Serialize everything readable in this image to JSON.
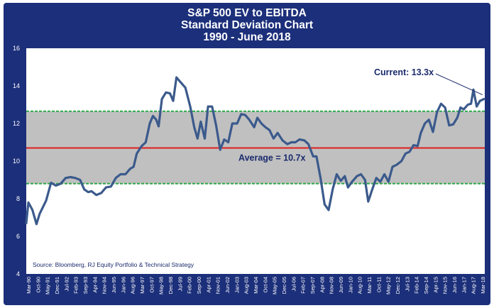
{
  "chart_data": {
    "type": "line",
    "title": [
      "S&P 500 EV to EBITDA",
      "Standard Deviation Chart",
      "1990 - June 2018"
    ],
    "ylim": [
      4,
      16
    ],
    "yticks": [
      "4",
      "6",
      "8",
      "10",
      "12",
      "14",
      "16"
    ],
    "xticks": [
      "Mar-90",
      "Oct-90",
      "May-91",
      "Dec-91",
      "Jul-92",
      "Feb-93",
      "Sep-93",
      "Apr-94",
      "Nov-94",
      "Jun-95",
      "Jan-96",
      "Aug-96",
      "Mar-97",
      "Oct-97",
      "May-98",
      "Dec-98",
      "Jul-99",
      "Feb-00",
      "Sep-00",
      "Apr-01",
      "Nov-01",
      "Jun-02",
      "Jan-03",
      "Aug-03",
      "Mar-04",
      "Oct-04",
      "May-05",
      "Dec-05",
      "Jul-06",
      "Feb-07",
      "Sep-07",
      "Apr-08",
      "Nov-08",
      "Jun-09",
      "Jan-10",
      "Aug-10",
      "Mar-11",
      "Oct-11",
      "May-12",
      "Dec-12",
      "Jul-13",
      "Feb-14",
      "Sep-14",
      "Apr-15",
      "Nov-15",
      "Jun-16",
      "Jan-17",
      "Aug-17",
      "Mar-18"
    ],
    "x_range": [
      1990.17,
      2018.5
    ],
    "average": 10.7,
    "upper_band": 12.65,
    "lower_band": 8.8,
    "series": [
      {
        "points": [
          [
            1990.17,
            6.7
          ],
          [
            1990.3,
            7.8
          ],
          [
            1990.55,
            7.4
          ],
          [
            1990.8,
            6.65
          ],
          [
            1991.0,
            7.2
          ],
          [
            1991.4,
            7.9
          ],
          [
            1991.7,
            8.85
          ],
          [
            1992.0,
            8.7
          ],
          [
            1992.3,
            8.8
          ],
          [
            1992.6,
            9.1
          ],
          [
            1992.9,
            9.15
          ],
          [
            1993.2,
            9.1
          ],
          [
            1993.5,
            9.0
          ],
          [
            1993.75,
            8.5
          ],
          [
            1994.0,
            8.35
          ],
          [
            1994.2,
            8.4
          ],
          [
            1994.5,
            8.2
          ],
          [
            1994.8,
            8.3
          ],
          [
            1995.1,
            8.6
          ],
          [
            1995.4,
            8.65
          ],
          [
            1995.7,
            9.1
          ],
          [
            1996.0,
            9.3
          ],
          [
            1996.3,
            9.3
          ],
          [
            1996.6,
            9.6
          ],
          [
            1996.8,
            9.7
          ],
          [
            1997.0,
            10.4
          ],
          [
            1997.3,
            10.8
          ],
          [
            1997.55,
            11.0
          ],
          [
            1997.8,
            12.0
          ],
          [
            1998.0,
            12.4
          ],
          [
            1998.2,
            12.2
          ],
          [
            1998.35,
            11.85
          ],
          [
            1998.55,
            13.3
          ],
          [
            1998.8,
            13.65
          ],
          [
            1999.05,
            13.6
          ],
          [
            1999.25,
            13.2
          ],
          [
            1999.45,
            14.45
          ],
          [
            1999.7,
            14.2
          ],
          [
            2000.0,
            13.9
          ],
          [
            2000.3,
            12.9
          ],
          [
            2000.55,
            11.8
          ],
          [
            2000.75,
            11.2
          ],
          [
            2000.95,
            12.1
          ],
          [
            2001.2,
            11.2
          ],
          [
            2001.4,
            12.9
          ],
          [
            2001.65,
            12.9
          ],
          [
            2001.9,
            11.9
          ],
          [
            2002.15,
            10.6
          ],
          [
            2002.4,
            11.15
          ],
          [
            2002.65,
            11.0
          ],
          [
            2002.9,
            12.0
          ],
          [
            2003.2,
            12.0
          ],
          [
            2003.45,
            12.5
          ],
          [
            2003.7,
            12.45
          ],
          [
            2003.95,
            12.2
          ],
          [
            2004.25,
            11.8
          ],
          [
            2004.45,
            12.3
          ],
          [
            2004.7,
            12.0
          ],
          [
            2004.95,
            11.8
          ],
          [
            2005.2,
            11.65
          ],
          [
            2005.45,
            11.2
          ],
          [
            2005.7,
            11.5
          ],
          [
            2006.0,
            11.1
          ],
          [
            2006.3,
            10.9
          ],
          [
            2006.55,
            11.0
          ],
          [
            2006.8,
            11.0
          ],
          [
            2007.05,
            11.15
          ],
          [
            2007.35,
            11.1
          ],
          [
            2007.6,
            10.9
          ],
          [
            2007.9,
            10.25
          ],
          [
            2008.1,
            10.25
          ],
          [
            2008.35,
            9.1
          ],
          [
            2008.6,
            7.7
          ],
          [
            2008.85,
            7.4
          ],
          [
            2009.1,
            8.5
          ],
          [
            2009.35,
            9.3
          ],
          [
            2009.6,
            8.95
          ],
          [
            2009.85,
            9.2
          ],
          [
            2010.05,
            8.6
          ],
          [
            2010.3,
            8.9
          ],
          [
            2010.6,
            9.2
          ],
          [
            2010.85,
            9.3
          ],
          [
            2011.1,
            9.0
          ],
          [
            2011.3,
            7.85
          ],
          [
            2011.55,
            8.5
          ],
          [
            2011.8,
            9.1
          ],
          [
            2012.05,
            8.9
          ],
          [
            2012.3,
            9.3
          ],
          [
            2012.55,
            8.9
          ],
          [
            2012.8,
            9.7
          ],
          [
            2013.05,
            9.8
          ],
          [
            2013.35,
            10.0
          ],
          [
            2013.6,
            10.4
          ],
          [
            2013.85,
            10.5
          ],
          [
            2014.1,
            10.85
          ],
          [
            2014.35,
            10.8
          ],
          [
            2014.55,
            11.5
          ],
          [
            2014.8,
            12.0
          ],
          [
            2015.05,
            12.2
          ],
          [
            2015.3,
            11.55
          ],
          [
            2015.55,
            12.6
          ],
          [
            2015.8,
            13.05
          ],
          [
            2016.05,
            12.85
          ],
          [
            2016.3,
            11.9
          ],
          [
            2016.55,
            11.95
          ],
          [
            2016.8,
            12.3
          ],
          [
            2017.0,
            12.85
          ],
          [
            2017.2,
            12.75
          ],
          [
            2017.45,
            13.0
          ],
          [
            2017.65,
            13.05
          ],
          [
            2017.8,
            13.8
          ],
          [
            2018.0,
            12.9
          ],
          [
            2018.2,
            13.2
          ],
          [
            2018.45,
            13.3
          ]
        ]
      }
    ],
    "annotations": {
      "average_label": "Average = 10.7x",
      "current_label": "Current: 13.3x",
      "current_value": 13.3
    },
    "source": "Source:  Bloomberg,  RJ Equity Portfolio & Technical Strategy",
    "grid": false,
    "legend": "none",
    "colors": {
      "frame": "#1c2f7a",
      "plot_bg": "#ffffff",
      "band": "#c0c0c0",
      "series": "#3b5a8c",
      "average_line": "#e01e1e",
      "band_lines": "#2faa4a",
      "text": "#1a2a6c"
    }
  }
}
